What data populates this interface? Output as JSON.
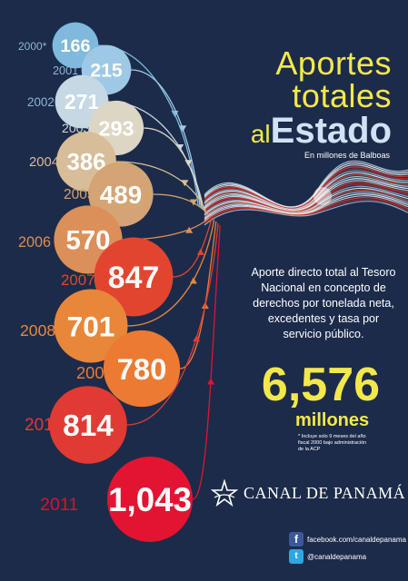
{
  "chart_data": {
    "type": "bubble",
    "categories": [
      "2000*",
      "2001",
      "2002",
      "2003",
      "2004",
      "2005",
      "2006",
      "2007",
      "2008",
      "2009",
      "2010",
      "2011"
    ],
    "values": [
      166,
      215,
      271,
      293,
      386,
      489,
      570,
      847,
      701,
      780,
      814,
      1043
    ],
    "value_labels": [
      "166",
      "215",
      "271",
      "293",
      "386",
      "489",
      "570",
      "847",
      "701",
      "780",
      "814",
      "1,043"
    ],
    "title": "Aportes totales al Estado",
    "subtitle": "En millones de Balboas"
  },
  "title": {
    "line1": "Aportes",
    "line2": "totales",
    "al": "al",
    "estado": "Estado"
  },
  "subtitle": "En millones de Balboas",
  "description": "Aporte directo total al Tesoro Nacional en concepto de derechos por tonelada neta, excedentes y tasa por servicio público.",
  "total": {
    "value": "6,576",
    "unit": "millones"
  },
  "footnote": "* Incluye solo 9 meses del año fiscal 2000 bajo administración de la ACP",
  "logo": {
    "text": "CANAL DE PANAMÁ",
    "icon": "star-emblem-icon"
  },
  "social": [
    {
      "icon": "facebook-icon",
      "text": "facebook.com/canaldepanama",
      "color": "#3b5998"
    },
    {
      "icon": "twitter-icon",
      "text": "@canaldepanama",
      "color": "#2ea7e0"
    }
  ],
  "colors": {
    "background": "#1c2b4a",
    "title": "#f3e84a",
    "bubble_palette": [
      "#7fb9de",
      "#9ec9e6",
      "#c5d8e3",
      "#ddd6c5",
      "#d7bd98",
      "#d4a474",
      "#db8f59",
      "#e2452f",
      "#e8873a",
      "#ec7a33",
      "#e13a33",
      "#e21432"
    ]
  }
}
